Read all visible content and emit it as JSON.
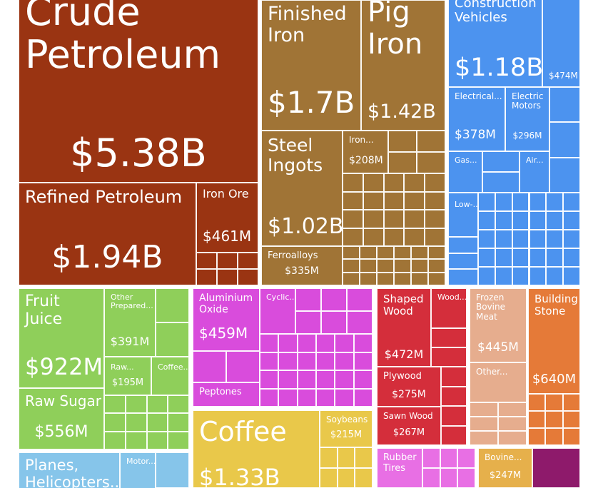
{
  "chart_data": {
    "type": "treemap",
    "value_unit": "USD",
    "colors": {
      "mineral": "#9a3412",
      "metal": "#a07436",
      "machinery": "#4c93ef",
      "vegetable": "#8fcf5a",
      "chemical": "#d94cdc",
      "foodstuff": "#e9c84a",
      "wood": "#d42e3b",
      "animal": "#e6ad8e",
      "stone": "#e57a38",
      "transport": "#86c5ea",
      "rubber": "#e86fe4",
      "animal_hide": "#e6b04b",
      "misc": "#8e1a6b"
    },
    "items": [
      {
        "name": "Crude\nPetroleum",
        "value": "$5.38B",
        "group": "mineral"
      },
      {
        "name": "Refined Petroleum",
        "value": "$1.94B",
        "group": "mineral"
      },
      {
        "name": "Iron Ore",
        "value": "$461M",
        "group": "mineral"
      },
      {
        "name": "Finished\nIron",
        "value": "$1.7B",
        "group": "metal"
      },
      {
        "name": "Pig\nIron",
        "value": "$1.42B",
        "group": "metal"
      },
      {
        "name": "Steel\nIngots",
        "value": "$1.02B",
        "group": "metal"
      },
      {
        "name": "Iron...",
        "value": "$208M",
        "group": "metal"
      },
      {
        "name": "Ferroalloys",
        "value": "$335M",
        "group": "metal"
      },
      {
        "name": "Construction\nVehicles",
        "value": "$1.18B",
        "group": "machinery"
      },
      {
        "name": "",
        "value": "$474M",
        "group": "machinery"
      },
      {
        "name": "Electrical...",
        "value": "$378M",
        "group": "machinery"
      },
      {
        "name": "Electric\nMotors",
        "value": "$296M",
        "group": "machinery"
      },
      {
        "name": "Gas...",
        "value": "",
        "group": "machinery"
      },
      {
        "name": "Air...",
        "value": "",
        "group": "machinery"
      },
      {
        "name": "Low-...",
        "value": "",
        "group": "machinery"
      },
      {
        "name": "Fruit\nJuice",
        "value": "$922M",
        "group": "vegetable"
      },
      {
        "name": "Other\nPrepared...",
        "value": "$391M",
        "group": "vegetable"
      },
      {
        "name": "Raw...",
        "value": "$195M",
        "group": "vegetable"
      },
      {
        "name": "Coffee...",
        "value": "",
        "group": "vegetable"
      },
      {
        "name": "Raw Sugar",
        "value": "$556M",
        "group": "vegetable"
      },
      {
        "name": "Aluminium\nOxide",
        "value": "$459M",
        "group": "chemical"
      },
      {
        "name": "Cyclic...",
        "value": "",
        "group": "chemical"
      },
      {
        "name": "Peptones",
        "value": "",
        "group": "chemical"
      },
      {
        "name": "Coffee",
        "value": "$1.33B",
        "group": "foodstuff"
      },
      {
        "name": "Soybeans",
        "value": "$215M",
        "group": "foodstuff"
      },
      {
        "name": "Shaped\nWood",
        "value": "$472M",
        "group": "wood"
      },
      {
        "name": "Wood...",
        "value": "",
        "group": "wood"
      },
      {
        "name": "Plywood",
        "value": "$275M",
        "group": "wood"
      },
      {
        "name": "Sawn Wood",
        "value": "$267M",
        "group": "wood"
      },
      {
        "name": "Frozen\nBovine\nMeat",
        "value": "$445M",
        "group": "animal"
      },
      {
        "name": "Other...",
        "value": "",
        "group": "animal"
      },
      {
        "name": "Building\nStone",
        "value": "$640M",
        "group": "stone"
      },
      {
        "name": "Planes,\nHelicopters...",
        "value": "",
        "group": "transport"
      },
      {
        "name": "Motor...",
        "value": "",
        "group": "transport"
      },
      {
        "name": "Rubber\nTires",
        "value": "",
        "group": "rubber"
      },
      {
        "name": "Bovine...",
        "value": "$247M",
        "group": "animal_hide"
      },
      {
        "name": "",
        "value": "",
        "group": "misc"
      }
    ]
  }
}
